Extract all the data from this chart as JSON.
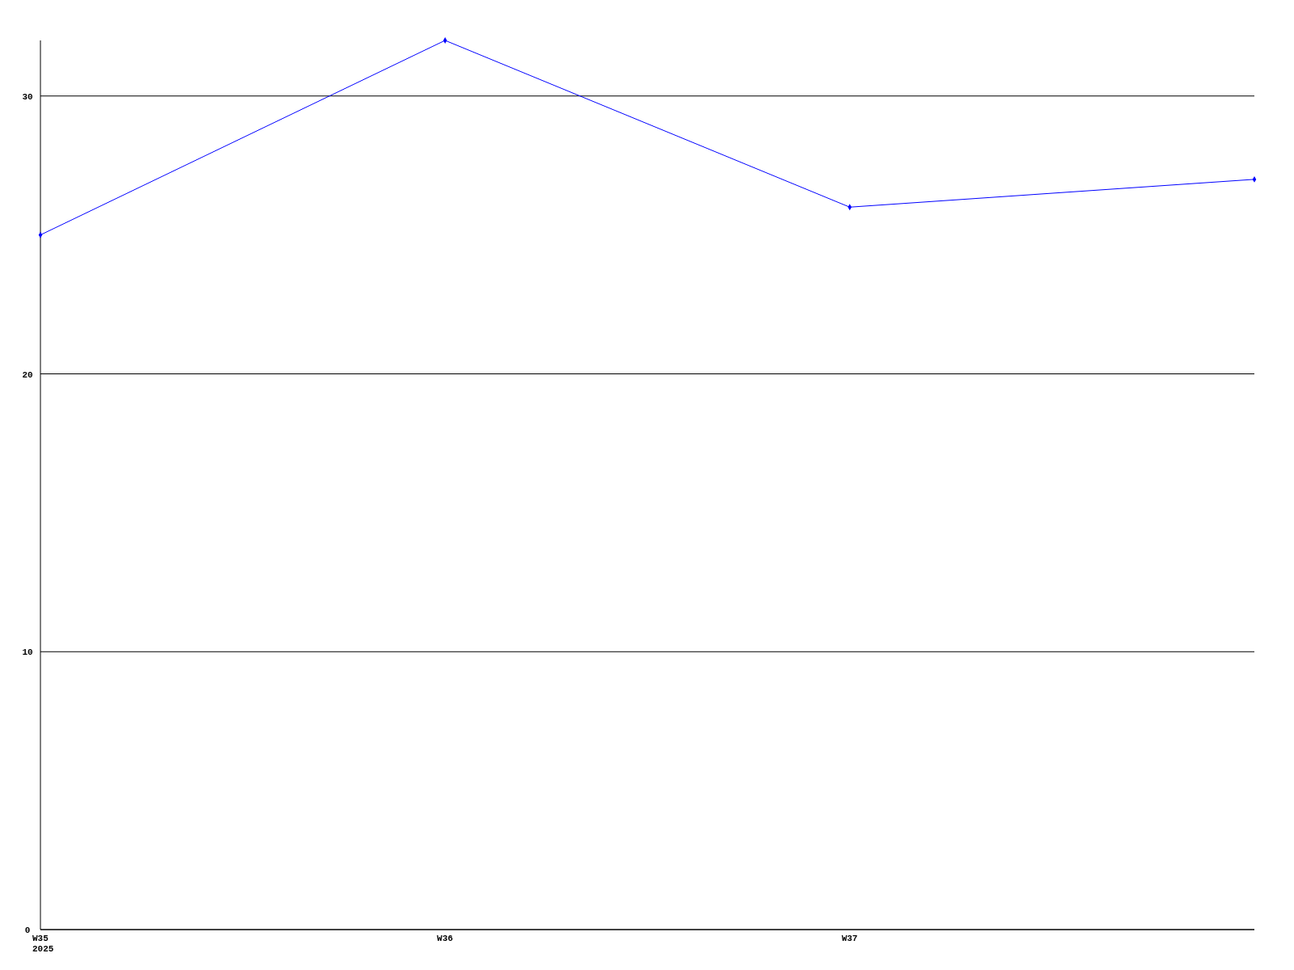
{
  "chart_data": {
    "type": "line",
    "categories": [
      "W35\n2025",
      "W36",
      "W37",
      null
    ],
    "series": [
      {
        "color": "#0000ff",
        "values": [
          25,
          32,
          26,
          27
        ]
      }
    ],
    "ylim": [
      0,
      32
    ],
    "yticks": [
      0,
      10,
      20,
      30
    ],
    "grid": "y",
    "marker": "diamond",
    "line_style": "solid"
  }
}
